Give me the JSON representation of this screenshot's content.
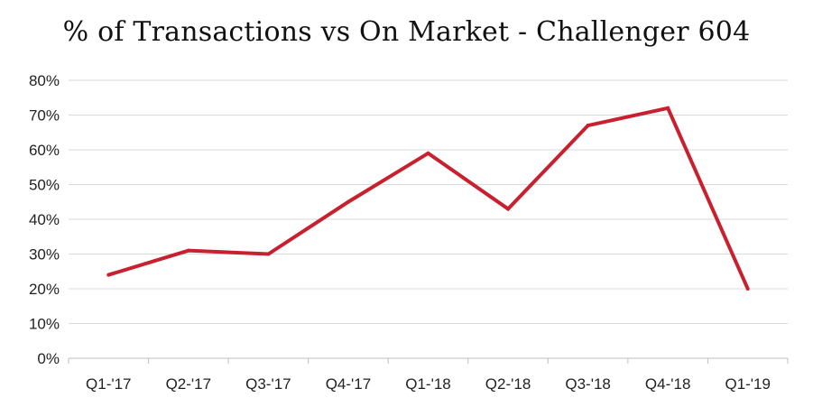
{
  "chart_data": {
    "type": "line",
    "title": "% of Transactions vs On Market - Challenger 604",
    "xlabel": "",
    "ylabel": "",
    "categories": [
      "Q1-'17",
      "Q2-'17",
      "Q3-'17",
      "Q4-'17",
      "Q1-'18",
      "Q2-'18",
      "Q3-'18",
      "Q4-'18",
      "Q1-'19"
    ],
    "series": [
      {
        "values": [
          24,
          31,
          30,
          45,
          59,
          43,
          67,
          72,
          20
        ]
      }
    ],
    "ylim": [
      0,
      80
    ],
    "yticks": [
      0,
      10,
      20,
      30,
      40,
      50,
      60,
      70,
      80
    ],
    "ytick_labels": [
      "0%",
      "10%",
      "20%",
      "30%",
      "40%",
      "50%",
      "60%",
      "70%",
      "80%"
    ],
    "grid": true,
    "legend": "none",
    "colors": {
      "line": "#c8202f",
      "grid": "#d9d9d9",
      "axis": "#bfbfbf"
    }
  }
}
